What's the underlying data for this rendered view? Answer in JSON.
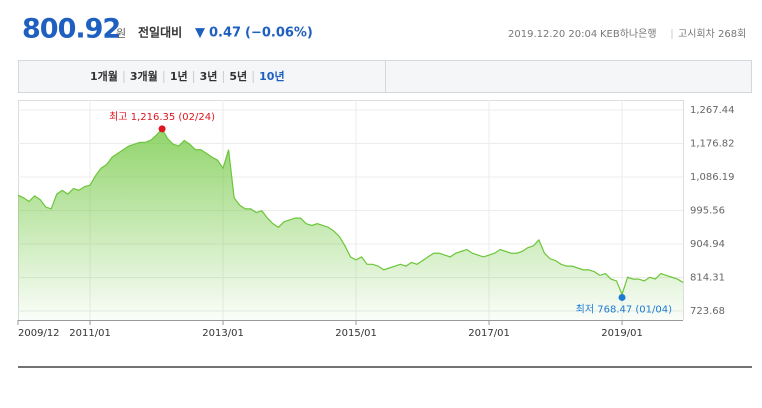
{
  "header": {
    "price": "800.92",
    "unit": "원",
    "change_label": "전일대비",
    "change_arrow": "▼",
    "change": "0.47",
    "change_pct": "(−0.06%)",
    "timestamp": "2019.12.20 20:04",
    "bank": "KEB하나은행",
    "round": "고시회차 268회"
  },
  "tabs": [
    "1개월",
    "3개월",
    "1년",
    "3년",
    "5년",
    "10년"
  ],
  "active_tab": 5,
  "chart_data": {
    "type": "area",
    "categories": [
      "2009/12",
      null,
      null,
      null,
      null,
      null,
      null,
      null,
      null,
      null,
      null,
      null,
      null,
      "2011/01",
      null,
      null,
      null,
      null,
      null,
      null,
      null,
      null,
      null,
      null,
      null,
      null,
      null,
      null,
      null,
      null,
      null,
      null,
      null,
      null,
      null,
      null,
      null,
      "2013/01",
      null,
      null,
      null,
      null,
      null,
      null,
      null,
      null,
      null,
      null,
      null,
      null,
      null,
      null,
      null,
      null,
      null,
      null,
      null,
      null,
      null,
      null,
      null,
      "2015/01",
      null,
      null,
      null,
      null,
      null,
      null,
      null,
      null,
      null,
      null,
      null,
      null,
      null,
      null,
      null,
      null,
      null,
      null,
      null,
      null,
      null,
      null,
      null,
      "2017/01",
      null,
      null,
      null,
      null,
      null,
      null,
      null,
      null,
      null,
      null,
      null,
      null,
      null,
      null,
      null,
      null,
      null,
      null,
      null,
      null,
      null,
      null,
      null,
      "2019/01",
      null,
      null,
      null,
      null,
      null,
      null,
      null,
      null,
      null,
      null,
      null
    ],
    "series": [
      {
        "color": "#6cc63a",
        "values": [
          1037,
          1030,
          1020,
          1035,
          1025,
          1005,
          1000,
          1040,
          1050,
          1040,
          1055,
          1050,
          1060,
          1064,
          1090,
          1110,
          1120,
          1140,
          1150,
          1160,
          1170,
          1175,
          1180,
          1180,
          1186,
          1200,
          1216.35,
          1190,
          1175,
          1170,
          1185,
          1175,
          1160,
          1160,
          1150,
          1140,
          1132,
          1110,
          1160,
          1030,
          1010,
          1000,
          1000,
          990,
          995,
          975,
          960,
          950,
          965,
          970,
          975,
          975,
          960,
          955,
          960,
          955,
          950,
          940,
          925,
          900,
          870,
          862,
          870,
          850,
          850,
          845,
          835,
          840,
          845,
          850,
          845,
          855,
          850,
          860,
          870,
          880,
          880,
          875,
          870,
          880,
          885,
          890,
          880,
          875,
          870,
          875,
          880,
          890,
          885,
          880,
          880,
          885,
          895,
          900,
          916,
          880,
          865,
          860,
          850,
          845,
          845,
          840,
          835,
          835,
          830,
          820,
          825,
          810,
          805,
          768.47,
          815,
          810,
          810,
          805,
          815,
          810,
          825,
          820,
          815,
          810,
          800.92
        ]
      }
    ],
    "high_label": "최고 1,216.35 (02/24)",
    "high_color": "#e0161f",
    "low_label": "최저 768.47 (01/04)",
    "low_color": "#1e7bd4",
    "ylim": [
      723.68,
      1267.44
    ],
    "yticks": [
      723.68,
      814.31,
      904.94,
      995.56,
      {
        "value": 1086.19,
        "label": "1,086.19"
      },
      {
        "value": 1176.82,
        "label": "1,176.82"
      },
      {
        "value": 1267.44,
        "label": "1,267.44"
      }
    ],
    "grid": true
  }
}
